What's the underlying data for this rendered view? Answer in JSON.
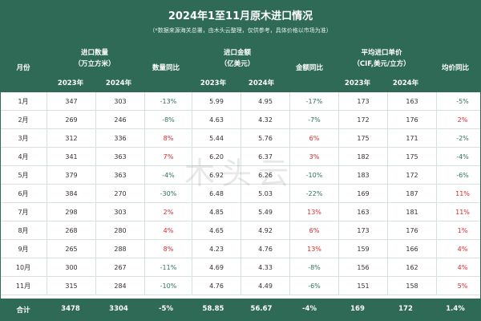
{
  "header": {
    "title": "2024年1至11月原木进口情况",
    "subtitle": "（*数据来源海关总署，由木头云整理，仅供参考，具体价格以市场为准）",
    "col_month": "月份",
    "group_volume_line1": "进口数量",
    "group_volume_line2": "（万立方米）",
    "col_volume_yoy": "数量同比",
    "group_amount_line1": "进口金额",
    "group_amount_line2": "（亿美元）",
    "col_amount_yoy": "金额同比",
    "group_price_line1": "平均进口单价",
    "group_price_line2": "（CIF,美元/立方）",
    "col_price_yoy": "均价同比",
    "year_2023": "2023年",
    "year_2024": "2024年"
  },
  "rows": [
    [
      "1月",
      "347",
      "303",
      "-13%",
      "5.99",
      "4.95",
      "-17%",
      "173",
      "163",
      "-5%"
    ],
    [
      "2月",
      "269",
      "246",
      "-8%",
      "4.63",
      "4.32",
      "-7%",
      "172",
      "176",
      "2%"
    ],
    [
      "3月",
      "312",
      "336",
      "8%",
      "5.44",
      "5.76",
      "6%",
      "175",
      "171",
      "-2%"
    ],
    [
      "4月",
      "341",
      "363",
      "7%",
      "6.20",
      "6.37",
      "3%",
      "182",
      "175",
      "-4%"
    ],
    [
      "5月",
      "379",
      "363",
      "-4%",
      "6.92",
      "6.26",
      "-10%",
      "183",
      "172",
      "-6%"
    ],
    [
      "6月",
      "384",
      "270",
      "-30%",
      "6.48",
      "5.03",
      "-22%",
      "169",
      "187",
      "11%"
    ],
    [
      "7月",
      "298",
      "303",
      "2%",
      "4.85",
      "5.49",
      "13%",
      "163",
      "181",
      "11%"
    ],
    [
      "8月",
      "268",
      "280",
      "4%",
      "4.65",
      "4.92",
      "6%",
      "173",
      "176",
      "1%"
    ],
    [
      "9月",
      "265",
      "288",
      "8%",
      "4.23",
      "4.76",
      "13%",
      "159",
      "166",
      "4%"
    ],
    [
      "10月",
      "300",
      "267",
      "-11%",
      "4.69",
      "4.33",
      "-8%",
      "156",
      "162",
      "4%"
    ],
    [
      "11月",
      "315",
      "284",
      "-10%",
      "4.76",
      "4.49",
      "-6%",
      "151",
      "158",
      "5%"
    ]
  ],
  "total": [
    "合计",
    "3478",
    "3304",
    "-5%",
    "58.85",
    "56.67",
    "-4%",
    "169",
    "172",
    "1.4%"
  ],
  "watermark": "木头云",
  "colors": {
    "header_bg": "#2e6a56",
    "negative": "#2f7558",
    "positive": "#e0262b"
  }
}
